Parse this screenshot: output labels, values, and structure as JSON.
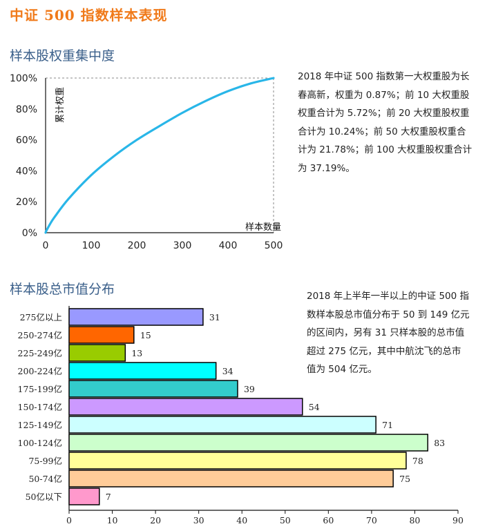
{
  "page": {
    "title": "中证 500 指数样本表现",
    "title_color": "#f07a1a",
    "section_color": "#3a5f8a"
  },
  "section1": {
    "heading": "样本股权重集中度",
    "paragraph_lines": [
      "2018 年中证 500 指数第一大权重股为长",
      "春高新，权重为 0.87%；前 10 大权重股",
      "权重合计为 5.72%；前 20 大权重股权重",
      "合计为 10.24%；前 50 大权重股权重合",
      "计为 21.78%；前 100 大权重股权重合计",
      "为 37.19%。"
    ]
  },
  "section2": {
    "heading": "样本股总市值分布",
    "paragraph_lines": [
      "2018 年上半年一半以上的中证 500 指",
      "数样本股总市值分布于 50 到 149 亿元",
      "的区间内，另有 31 只样本股的总市值",
      "超过 275 亿元，其中中航沈飞的总市",
      "值为 504 亿元。"
    ]
  },
  "chart_data": [
    {
      "type": "line",
      "xlabel": "样本数量",
      "ylabel": "累计权重",
      "xlim": [
        0,
        500
      ],
      "ylim": [
        0,
        100
      ],
      "x_ticks": [
        "0",
        "100",
        "200",
        "300",
        "400",
        "500"
      ],
      "y_ticks": [
        "0%",
        "20%",
        "40%",
        "60%",
        "80%",
        "100%"
      ],
      "grid": false,
      "line_color": "#29b6e8",
      "series": [
        {
          "x": [
            0,
            1,
            10,
            20,
            50,
            100,
            150,
            200,
            250,
            300,
            350,
            400,
            450,
            500
          ],
          "y": [
            0,
            0.87,
            5.72,
            10.24,
            21.78,
            37.19,
            49.5,
            60.0,
            69.0,
            77.5,
            85.0,
            91.5,
            96.5,
            100
          ]
        }
      ]
    },
    {
      "type": "bar",
      "orientation": "horizontal",
      "categories": [
        "275亿以上",
        "250-274亿",
        "225-249亿",
        "200-224亿",
        "175-199亿",
        "150-174亿",
        "125-149亿",
        "100-124亿",
        "75-99亿",
        "50-74亿",
        "50亿以下"
      ],
      "values": [
        31,
        15,
        13,
        34,
        39,
        54,
        71,
        83,
        78,
        75,
        7
      ],
      "colors": [
        "#9999ff",
        "#ff6600",
        "#99cc00",
        "#00ffff",
        "#33cccc",
        "#cc99ff",
        "#ccffff",
        "#ccffcc",
        "#ffff99",
        "#ffcc99",
        "#ff99cc"
      ],
      "xlim": [
        0,
        90
      ],
      "x_ticks": [
        "0",
        "10",
        "20",
        "30",
        "40",
        "50",
        "60",
        "70",
        "80",
        "90"
      ],
      "grid": false
    }
  ]
}
